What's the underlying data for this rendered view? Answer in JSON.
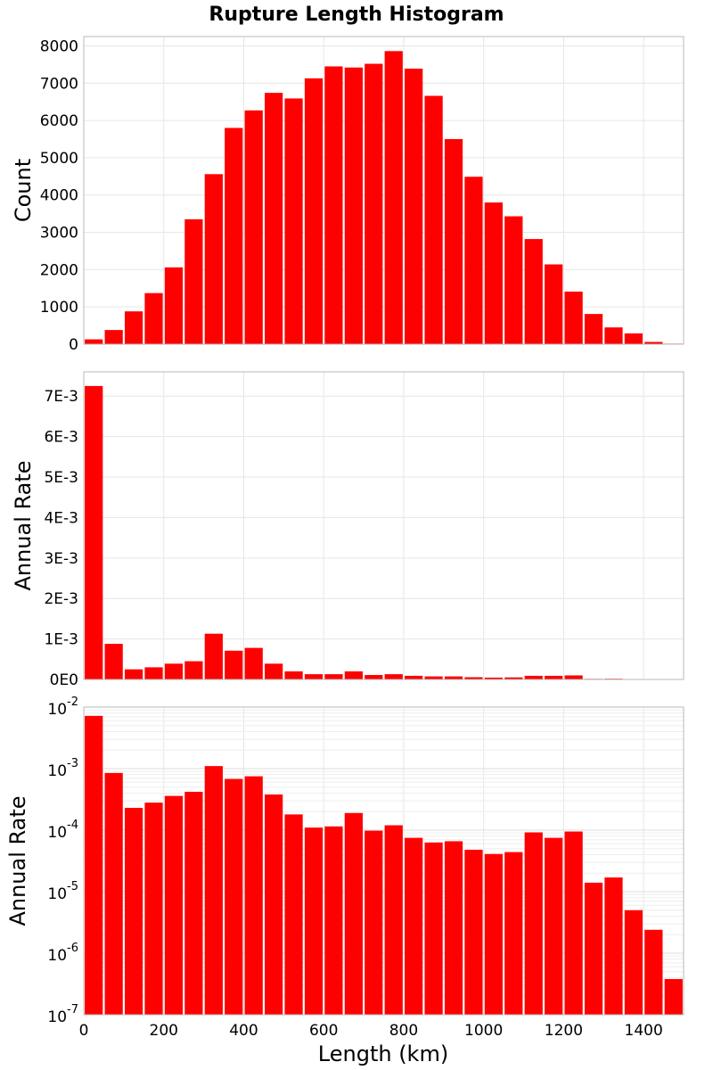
{
  "chart_data": {
    "type": "bar",
    "title": "Rupture Length Histogram",
    "xlabel": "Length (km)",
    "xlim": [
      0,
      1500
    ],
    "x_ticks": [
      "0",
      "200",
      "400",
      "600",
      "800",
      "1000",
      "1200",
      "1400"
    ],
    "x_tick_values": [
      0,
      200,
      400,
      600,
      800,
      1000,
      1200,
      1400
    ],
    "bin_width": 50,
    "bin_centers": [
      25,
      75,
      125,
      175,
      225,
      275,
      325,
      375,
      425,
      475,
      525,
      575,
      625,
      675,
      725,
      775,
      825,
      875,
      925,
      975,
      1025,
      1075,
      1125,
      1175,
      1225,
      1275,
      1325,
      1375,
      1425,
      1475
    ],
    "bar_color": "#ff0000",
    "panels": [
      {
        "name": "count",
        "ylabel": "Count",
        "scale": "linear",
        "ylim": [
          0,
          8250
        ],
        "y_ticks": [
          "0",
          "1000",
          "2000",
          "3000",
          "4000",
          "5000",
          "6000",
          "7000",
          "8000"
        ],
        "y_tick_values": [
          0,
          1000,
          2000,
          3000,
          4000,
          5000,
          6000,
          7000,
          8000
        ],
        "values": [
          130,
          380,
          880,
          1370,
          2060,
          3350,
          4560,
          5800,
          6270,
          6740,
          6590,
          7130,
          7450,
          7420,
          7520,
          7860,
          7390,
          6660,
          5500,
          4490,
          3800,
          3430,
          2820,
          2140,
          1410,
          810,
          450,
          290,
          60,
          15
        ]
      },
      {
        "name": "rate-linear",
        "ylabel": "Annual Rate",
        "scale": "linear",
        "ylim": [
          0,
          0.0076
        ],
        "y_ticks": [
          "0E0",
          "1E-3",
          "2E-3",
          "3E-3",
          "4E-3",
          "5E-3",
          "6E-3",
          "7E-3"
        ],
        "y_tick_values": [
          0,
          0.001,
          0.002,
          0.003,
          0.004,
          0.005,
          0.006,
          0.007
        ],
        "values": [
          0.00725,
          0.00088,
          0.00025,
          0.0003,
          0.00039,
          0.00045,
          0.00113,
          0.00071,
          0.00078,
          0.00039,
          0.0002,
          0.00013,
          0.00013,
          0.0002,
          0.00011,
          0.00013,
          9e-05,
          7.5e-05,
          7.5e-05,
          5.5e-05,
          4.5e-05,
          5e-05,
          9e-05,
          9e-05,
          0.0001,
          1.5e-05,
          1.8e-05,
          5e-06,
          2.5e-06,
          4e-07
        ]
      },
      {
        "name": "rate-log",
        "ylabel": "Annual Rate",
        "scale": "log",
        "ylim": [
          1e-07,
          0.01
        ],
        "y_ticks": [
          {
            "base": "10",
            "exp": "-2"
          },
          {
            "base": "10",
            "exp": "-3"
          },
          {
            "base": "10",
            "exp": "-4"
          },
          {
            "base": "10",
            "exp": "-5"
          },
          {
            "base": "10",
            "exp": "-6"
          },
          {
            "base": "10",
            "exp": "-7"
          }
        ],
        "y_tick_values": [
          0.01,
          0.001,
          0.0001,
          1e-05,
          1e-06,
          1e-07
        ],
        "values": [
          0.0072,
          0.00085,
          0.00023,
          0.00028,
          0.00036,
          0.00042,
          0.0011,
          0.00068,
          0.00075,
          0.00038,
          0.00018,
          0.00011,
          0.000115,
          0.00019,
          9.8e-05,
          0.00012,
          7.5e-05,
          6.3e-05,
          6.6e-05,
          4.8e-05,
          4.1e-05,
          4.4e-05,
          9.2e-05,
          7.5e-05,
          9.5e-05,
          1.4e-05,
          1.7e-05,
          5e-06,
          2.4e-06,
          3.8e-07
        ]
      }
    ]
  }
}
